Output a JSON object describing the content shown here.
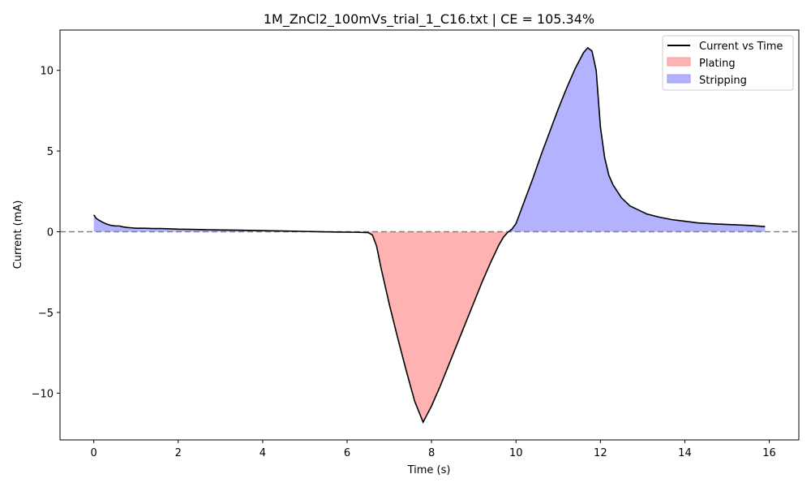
{
  "chart_data": {
    "type": "line",
    "title": "1M_ZnCl2_100mVs_trial_1_C16.txt | CE = 105.34%",
    "xlabel": "Time (s)",
    "ylabel": "Current (mA)",
    "xlim": [
      -0.8,
      16.7
    ],
    "ylim": [
      -12.9,
      12.5
    ],
    "xticks": [
      0,
      2,
      4,
      6,
      8,
      10,
      12,
      14,
      16
    ],
    "yticks": [
      -10,
      -5,
      0,
      5,
      10
    ],
    "xtick_labels": [
      "0",
      "2",
      "4",
      "6",
      "8",
      "10",
      "12",
      "14",
      "16"
    ],
    "ytick_labels": [
      "−10",
      "−5",
      "0",
      "5",
      "10"
    ],
    "grid": false,
    "legend_position": "top-right",
    "zero_line": {
      "y": 0,
      "style": "dashed",
      "color": "#808080"
    },
    "colors": {
      "line": "#000000",
      "plating": "#ffb2b2",
      "stripping": "#b2b2ff",
      "plating_edge": "#ff9999",
      "stripping_edge": "#9999ee"
    },
    "series": [
      {
        "name": "Current vs Time",
        "x": [
          0.0,
          0.05,
          0.1,
          0.2,
          0.3,
          0.4,
          0.5,
          0.6,
          0.7,
          0.8,
          0.9,
          1.0,
          1.2,
          1.4,
          1.6,
          1.8,
          2.0,
          2.3,
          2.6,
          3.0,
          3.4,
          3.8,
          4.2,
          4.6,
          5.0,
          5.4,
          5.8,
          6.2,
          6.5,
          6.6,
          6.7,
          6.8,
          7.0,
          7.2,
          7.4,
          7.6,
          7.8,
          7.9,
          8.0,
          8.2,
          8.4,
          8.6,
          8.8,
          9.0,
          9.2,
          9.4,
          9.6,
          9.7,
          9.8,
          9.9,
          10.0,
          10.2,
          10.4,
          10.6,
          10.8,
          11.0,
          11.2,
          11.4,
          11.6,
          11.7,
          11.8,
          11.9,
          12.0,
          12.1,
          12.2,
          12.3,
          12.5,
          12.7,
          12.9,
          13.1,
          13.4,
          13.7,
          14.0,
          14.3,
          14.6,
          15.0,
          15.3,
          15.6,
          15.9
        ],
        "y": [
          1.05,
          0.85,
          0.75,
          0.6,
          0.48,
          0.4,
          0.36,
          0.36,
          0.3,
          0.26,
          0.24,
          0.22,
          0.22,
          0.2,
          0.2,
          0.18,
          0.16,
          0.15,
          0.13,
          0.11,
          0.1,
          0.08,
          0.06,
          0.04,
          0.02,
          0.0,
          -0.02,
          -0.03,
          -0.05,
          -0.2,
          -0.9,
          -2.2,
          -4.5,
          -6.6,
          -8.6,
          -10.5,
          -11.8,
          -11.3,
          -10.8,
          -9.6,
          -8.3,
          -7.0,
          -5.7,
          -4.4,
          -3.1,
          -1.9,
          -0.8,
          -0.35,
          -0.05,
          0.15,
          0.5,
          1.9,
          3.3,
          4.8,
          6.2,
          7.6,
          8.9,
          10.1,
          11.1,
          11.4,
          11.2,
          10.0,
          6.5,
          4.6,
          3.5,
          2.9,
          2.1,
          1.6,
          1.35,
          1.1,
          0.9,
          0.75,
          0.65,
          0.55,
          0.5,
          0.45,
          0.42,
          0.38,
          0.32
        ]
      }
    ],
    "legend": [
      {
        "label": "Current vs Time",
        "kind": "line"
      },
      {
        "label": "Plating",
        "kind": "fill-plating"
      },
      {
        "label": "Stripping",
        "kind": "fill-stripping"
      }
    ]
  }
}
